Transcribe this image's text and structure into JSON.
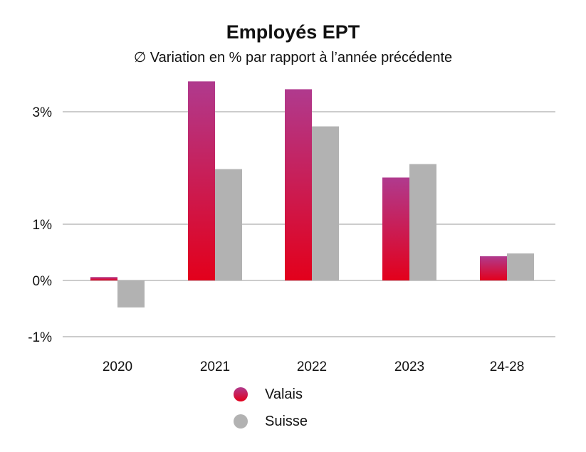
{
  "chart_data": {
    "type": "bar",
    "title": "Employés EPT",
    "subtitle": "∅ Variation en % par rapport à l’année précédente",
    "categories": [
      "2020",
      "2021",
      "2022",
      "2023",
      "24-28"
    ],
    "series": [
      {
        "name": "Valais",
        "values": [
          0.06,
          3.54,
          3.4,
          1.83,
          0.43
        ],
        "color_top": "#b03a8e",
        "color_bottom": "#e3001b"
      },
      {
        "name": "Suisse",
        "values": [
          -0.48,
          1.98,
          2.74,
          2.07,
          0.48
        ],
        "color": "#b2b2b2"
      }
    ],
    "yticks": [
      {
        "value": 3,
        "label": "3%"
      },
      {
        "value": 1,
        "label": "1%"
      },
      {
        "value": 0,
        "label": "0%"
      },
      {
        "value": -1,
        "label": "-1%"
      }
    ],
    "ylim": [
      -1,
      3.6
    ],
    "grid": true,
    "legend_position": "bottom"
  }
}
